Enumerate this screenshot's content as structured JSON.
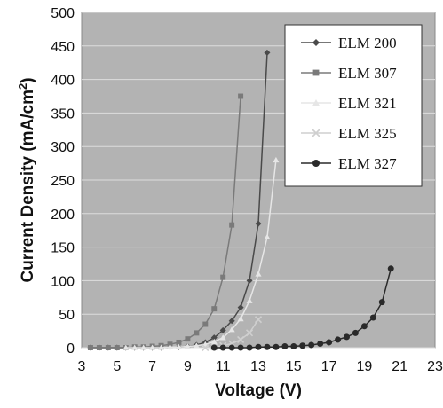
{
  "chart_data": {
    "type": "line",
    "xlabel": "Voltage (V)",
    "ylabel_main": "Current Density (mA/cm",
    "ylabel_sup": "2",
    "ylabel_end": ")",
    "xlim": [
      3,
      23
    ],
    "ylim": [
      0,
      500
    ],
    "xticks": [
      3,
      5,
      7,
      9,
      11,
      13,
      15,
      17,
      19,
      21,
      23
    ],
    "yticks": [
      0,
      50,
      100,
      150,
      200,
      250,
      300,
      350,
      400,
      450,
      500
    ],
    "grid": "horizontal",
    "legend_position": "top-right",
    "plot_background": "#b3b3b3",
    "series": [
      {
        "name": "ELM 200",
        "marker": "diamond",
        "color": "#4a4a4a",
        "points": [
          [
            3.5,
            0
          ],
          [
            4,
            0
          ],
          [
            4.5,
            0
          ],
          [
            5,
            0
          ],
          [
            5.5,
            0
          ],
          [
            6,
            0
          ],
          [
            6.5,
            0
          ],
          [
            7,
            0
          ],
          [
            7.5,
            0
          ],
          [
            8,
            1
          ],
          [
            8.5,
            1
          ],
          [
            9,
            2
          ],
          [
            9.5,
            4
          ],
          [
            10,
            8
          ],
          [
            10.5,
            15
          ],
          [
            11,
            26
          ],
          [
            11.5,
            40
          ],
          [
            12,
            60
          ],
          [
            12.5,
            100
          ],
          [
            13,
            185
          ],
          [
            13.5,
            440
          ]
        ]
      },
      {
        "name": "ELM 307",
        "marker": "square",
        "color": "#7a7a7a",
        "points": [
          [
            3.5,
            0
          ],
          [
            4,
            0
          ],
          [
            4.5,
            0
          ],
          [
            5,
            0
          ],
          [
            5.5,
            0
          ],
          [
            6,
            1
          ],
          [
            6.5,
            1
          ],
          [
            7,
            2
          ],
          [
            7.5,
            3
          ],
          [
            8,
            5
          ],
          [
            8.5,
            8
          ],
          [
            9,
            13
          ],
          [
            9.5,
            22
          ],
          [
            10,
            35
          ],
          [
            10.5,
            58
          ],
          [
            11,
            105
          ],
          [
            11.5,
            183
          ],
          [
            12,
            375
          ]
        ]
      },
      {
        "name": "ELM 321",
        "marker": "triangle",
        "color": "#e6e6e6",
        "points": [
          [
            5.5,
            0
          ],
          [
            6,
            0
          ],
          [
            6.5,
            0
          ],
          [
            7,
            0
          ],
          [
            7.5,
            0
          ],
          [
            8,
            1
          ],
          [
            8.5,
            1
          ],
          [
            9,
            2
          ],
          [
            9.5,
            3
          ],
          [
            10,
            5
          ],
          [
            10.5,
            9
          ],
          [
            11,
            15
          ],
          [
            11.5,
            27
          ],
          [
            12,
            43
          ],
          [
            12.5,
            70
          ],
          [
            13,
            110
          ],
          [
            13.5,
            165
          ],
          [
            14,
            280
          ]
        ]
      },
      {
        "name": "ELM 325",
        "marker": "x",
        "color": "#cfcfcf",
        "points": [
          [
            10,
            0
          ],
          [
            10.5,
            1
          ],
          [
            11,
            3
          ],
          [
            11.5,
            6
          ],
          [
            12,
            12
          ],
          [
            12.5,
            22
          ],
          [
            13,
            42
          ]
        ]
      },
      {
        "name": "ELM 327",
        "marker": "circle",
        "color": "#2a2a2a",
        "points": [
          [
            10.5,
            0
          ],
          [
            11,
            0
          ],
          [
            11.5,
            0
          ],
          [
            12,
            0
          ],
          [
            12.5,
            0
          ],
          [
            13,
            1
          ],
          [
            13.5,
            1
          ],
          [
            14,
            1
          ],
          [
            14.5,
            2
          ],
          [
            15,
            2
          ],
          [
            15.5,
            3
          ],
          [
            16,
            4
          ],
          [
            16.5,
            6
          ],
          [
            17,
            8
          ],
          [
            17.5,
            12
          ],
          [
            18,
            16
          ],
          [
            18.5,
            22
          ],
          [
            19,
            32
          ],
          [
            19.5,
            45
          ],
          [
            20,
            68
          ],
          [
            20.5,
            118
          ]
        ]
      }
    ]
  }
}
